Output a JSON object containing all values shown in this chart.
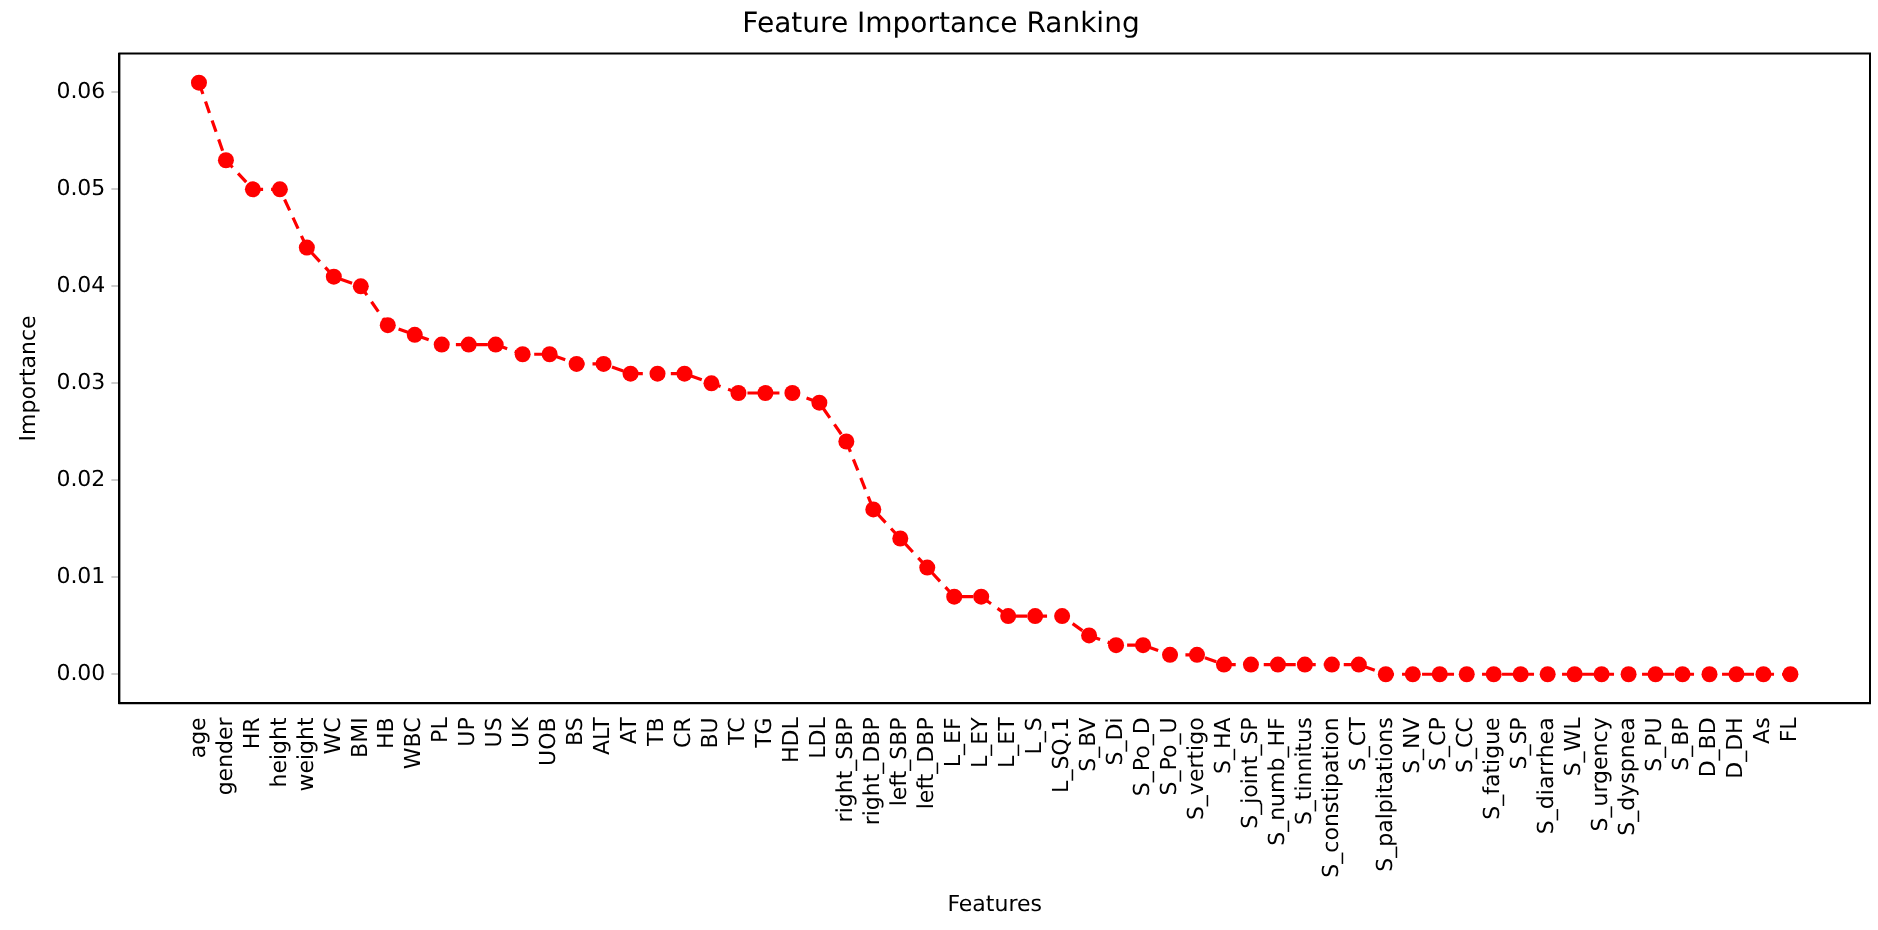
{
  "chart_data": {
    "type": "line",
    "title": "Feature Importance Ranking",
    "xlabel": "Features",
    "ylabel": "Importance",
    "categories": [
      "age",
      "gender",
      "HR",
      "height",
      "weight",
      "WC",
      "BMI",
      "HB",
      "WBC",
      "PL",
      "UP",
      "US",
      "UK",
      "UOB",
      "BS",
      "ALT",
      "AT",
      "TB",
      "CR",
      "BU",
      "TC",
      "TG",
      "HDL",
      "LDL",
      "right_SBP",
      "right_DBP",
      "left_SBP",
      "left_DBP",
      "L_EF",
      "L_EY",
      "L_ET",
      "L_S",
      "L_SQ.1",
      "S_BV",
      "S_Di",
      "S_Po_D",
      "S_Po_U",
      "S_vertigo",
      "S_HA",
      "S_joint_SP",
      "S_numb_HF",
      "S_tinnitus",
      "S_constipation",
      "S_CT",
      "S_palpitations",
      "S_NV",
      "S_CP",
      "S_CC",
      "S_fatigue",
      "S_SP",
      "S_diarrhea",
      "S_WL",
      "S_urgency",
      "S_dyspnea",
      "S_PU",
      "S_BP",
      "D_BD",
      "D_DH",
      "As",
      "FL"
    ],
    "values": [
      0.061,
      0.053,
      0.05,
      0.05,
      0.044,
      0.041,
      0.04,
      0.036,
      0.035,
      0.034,
      0.034,
      0.034,
      0.033,
      0.033,
      0.032,
      0.032,
      0.031,
      0.031,
      0.031,
      0.03,
      0.029,
      0.029,
      0.029,
      0.028,
      0.024,
      0.017,
      0.014,
      0.011,
      0.008,
      0.008,
      0.006,
      0.006,
      0.006,
      0.004,
      0.003,
      0.003,
      0.002,
      0.002,
      0.001,
      0.001,
      0.001,
      0.001,
      0.001,
      0.001,
      0,
      0,
      0,
      0,
      0,
      0,
      0,
      0,
      0,
      0,
      0,
      0,
      0,
      0,
      0,
      0
    ],
    "color": "#ff0000",
    "marker": "circle",
    "line_style": "dashed",
    "grid": false,
    "legend": false,
    "ylim": [
      -0.003,
      0.064
    ],
    "yticks": [
      {
        "value": 0,
        "label": "0.00"
      },
      {
        "value": 0.01,
        "label": "0.01"
      },
      {
        "value": 0.02,
        "label": "0.02"
      },
      {
        "value": 0.03,
        "label": "0.03"
      },
      {
        "value": 0.04,
        "label": "0.04"
      },
      {
        "value": 0.05,
        "label": "0.05"
      },
      {
        "value": 0.06,
        "label": "0.06"
      }
    ]
  }
}
